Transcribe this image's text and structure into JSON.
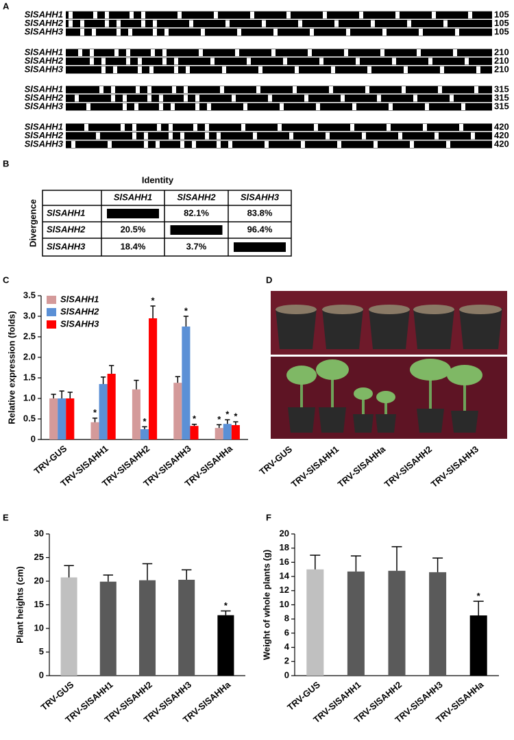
{
  "panel_labels": [
    "A",
    "B",
    "C",
    "D",
    "E",
    "F"
  ],
  "alignment": {
    "blocks": [
      {
        "names": [
          "SlSAHH1",
          "SlSAHH2",
          "SlSAHH3"
        ],
        "ends": [
          "105",
          "105",
          "105"
        ]
      },
      {
        "names": [
          "SlSAHH1",
          "SlSAHH2",
          "SlSAHH3"
        ],
        "ends": [
          "210",
          "210",
          "210"
        ]
      },
      {
        "names": [
          "SlSAHH1",
          "SlSAHH2",
          "SlSAHH3"
        ],
        "ends": [
          "315",
          "315",
          "315"
        ]
      },
      {
        "names": [
          "SlSAHH1",
          "SlSAHH2",
          "SlSAHH3"
        ],
        "ends": [
          "420",
          "420",
          "420"
        ]
      }
    ]
  },
  "table": {
    "title": "Identity",
    "side": "Divergence",
    "columns": [
      "SlSAHH1",
      "SlSAHH2",
      "SlSAHH3"
    ],
    "rows": [
      {
        "name": "SlSAHH1",
        "cells": [
          null,
          "82.1%",
          "83.8%"
        ]
      },
      {
        "name": "SlSAHH2",
        "cells": [
          "20.5%",
          null,
          "96.4%"
        ]
      },
      {
        "name": "SlSAHH3",
        "cells": [
          "18.4%",
          "3.7%",
          null
        ]
      }
    ]
  },
  "photo": {
    "labels": [
      "TRV-GUS",
      "TRV-SlSAHH1",
      "TRV-SlSAHHa",
      "TRV-SlSAHH2",
      "TRV-SlSAHH3"
    ]
  },
  "chart_data": [
    {
      "type": "bar",
      "ylabel": "Relative expression (folds)",
      "categories": [
        "TRV-GUS",
        "TRV-SlSAHH1",
        "TRV-SlSAHH2",
        "TRV-SlSAHH3",
        "TRV-SlSAHHa"
      ],
      "series": [
        {
          "name": "SlSAHH1",
          "color": "#d49a9a",
          "values": [
            1.0,
            0.42,
            1.22,
            1.38,
            0.28
          ],
          "errors": [
            0.1,
            0.1,
            0.22,
            0.15,
            0.08
          ],
          "annotations": [
            null,
            "*",
            null,
            null,
            "*"
          ]
        },
        {
          "name": "SlSAHH2",
          "color": "#5b90d6",
          "values": [
            1.0,
            1.35,
            0.25,
            2.75,
            0.38
          ],
          "errors": [
            0.18,
            0.17,
            0.06,
            0.25,
            0.1
          ],
          "annotations": [
            null,
            null,
            "*",
            "*",
            "*"
          ]
        },
        {
          "name": "SlSAHH3",
          "color": "#ff0000",
          "values": [
            1.0,
            1.6,
            2.95,
            0.33,
            0.35
          ],
          "errors": [
            0.15,
            0.2,
            0.3,
            0.04,
            0.08
          ],
          "annotations": [
            null,
            null,
            "*",
            "*",
            "*"
          ]
        }
      ],
      "ylim": [
        0,
        3.5
      ],
      "yticks": [
        0,
        0.5,
        {
          "value": 1,
          "label": "1.0"
        },
        1.5,
        {
          "value": 2,
          "label": "2.0"
        },
        2.5,
        {
          "value": 3,
          "label": "3.0"
        },
        3.5
      ],
      "legend": "top-left"
    },
    {
      "type": "bar",
      "ylabel": "Plant heights (cm)",
      "categories": [
        "TRV-GUS",
        "TRV-SlSAHH1",
        "TRV-SlSAHH2",
        "TRV-SlSAHH3",
        "TRV-SlSAHHa"
      ],
      "series": [
        {
          "colors": [
            "#c0c0c0",
            "#5a5a5a",
            "#5a5a5a",
            "#5a5a5a",
            "#000000"
          ],
          "values": [
            20.8,
            19.9,
            20.2,
            20.3,
            12.8
          ],
          "errors": [
            2.5,
            1.4,
            3.5,
            2.1,
            0.9
          ],
          "annotations": [
            null,
            null,
            null,
            null,
            "*"
          ]
        }
      ],
      "ylim": [
        0,
        30
      ],
      "yticks": [
        0,
        5,
        10,
        15,
        20,
        25,
        30
      ]
    },
    {
      "type": "bar",
      "ylabel": "Weight of whole plants (g)",
      "categories": [
        "TRV-GUS",
        "TRV-SlSAHH1",
        "TRV-SlSAHH2",
        "TRV-SlSAHH3",
        "TRV-SlSAHHa"
      ],
      "series": [
        {
          "colors": [
            "#c0c0c0",
            "#5a5a5a",
            "#5a5a5a",
            "#5a5a5a",
            "#000000"
          ],
          "values": [
            15.0,
            14.7,
            14.8,
            14.6,
            8.5
          ],
          "errors": [
            2.0,
            2.2,
            3.4,
            2.0,
            2.0
          ],
          "annotations": [
            null,
            null,
            null,
            null,
            "*"
          ]
        }
      ],
      "ylim": [
        0,
        20
      ],
      "yticks": [
        0,
        2,
        4,
        6,
        8,
        10,
        12,
        14,
        16,
        18,
        20
      ]
    }
  ]
}
